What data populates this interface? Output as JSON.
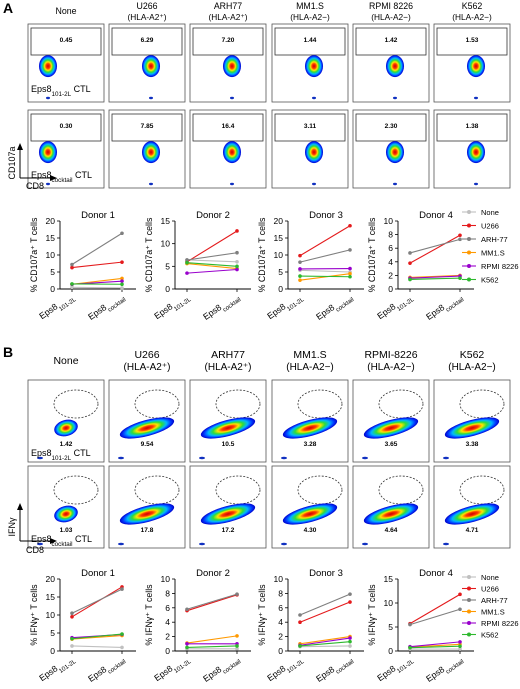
{
  "panelA": {
    "letter": "A",
    "columns": [
      {
        "title": "None",
        "sub": ""
      },
      {
        "title": "U266",
        "sub": "(HLA-A2⁺)"
      },
      {
        "title": "ARH77",
        "sub": "(HLA-A2⁺)"
      },
      {
        "title": "MM1.S",
        "sub": "(HLA-A2−)"
      },
      {
        "title": "RPMI 8226",
        "sub": "(HLA-A2−)"
      },
      {
        "title": "K562",
        "sub": "(HLA-A2−)"
      }
    ],
    "rows": [
      {
        "label_main": "Eps8",
        "label_sub": "101-2L",
        "label_tail": " CTL",
        "values": [
          "0.45",
          "6.29",
          "7.20",
          "1.44",
          "1.42",
          "1.53"
        ]
      },
      {
        "label_main": "Eps8",
        "label_sub": "cocktail",
        "label_tail": " CTL",
        "values": [
          "0.30",
          "7.85",
          "16.4",
          "3.11",
          "2.30",
          "1.38"
        ]
      }
    ],
    "yaxis": "CD107a",
    "xaxis": "CD8"
  },
  "panelB": {
    "letter": "B",
    "columns": [
      {
        "title": "None",
        "sub": ""
      },
      {
        "title": "U266",
        "sub": "(HLA-A2⁺)"
      },
      {
        "title": "ARH77",
        "sub": "(HLA-A2⁺)"
      },
      {
        "title": "MM1.S",
        "sub": "(HLA-A2−)"
      },
      {
        "title": "RPMI-8226",
        "sub": "(HLA-A2−)"
      },
      {
        "title": "K562",
        "sub": "(HLA-A2−)"
      }
    ],
    "rows": [
      {
        "label_main": "Eps8",
        "label_sub": "101-2L",
        "label_tail": " CTL",
        "values": [
          "1.42",
          "9.54",
          "10.5",
          "3.28",
          "3.65",
          "3.38"
        ]
      },
      {
        "label_main": "Eps8",
        "label_sub": "cocktail",
        "label_tail": " CTL",
        "values": [
          "1.03",
          "17.8",
          "17.2",
          "4.30",
          "4.64",
          "4.71"
        ]
      }
    ],
    "yaxis": "IFNγ",
    "xaxis": "CD8"
  },
  "legend": [
    {
      "name": "None",
      "color": "#c0c0c0"
    },
    {
      "name": "U266",
      "color": "#e41a1c"
    },
    {
      "name": "ARH-77",
      "color": "#7f7f7f"
    },
    {
      "name": "MM1.S",
      "color": "#ff9900"
    },
    {
      "name": "RPMI 8226",
      "color": "#9900cc"
    },
    {
      "name": "K562",
      "color": "#2eb82e"
    }
  ],
  "chart_data": [
    {
      "type": "line",
      "title": "Donor 1",
      "ylabel": "% CD107a⁺ T cells",
      "categories": [
        "Eps8 101-2L",
        "Eps8 cocktail"
      ],
      "ylim": [
        0,
        20
      ],
      "yticks": [
        0,
        5,
        10,
        15,
        20
      ],
      "series": [
        {
          "name": "None",
          "values": [
            0.5,
            0.3
          ]
        },
        {
          "name": "U266",
          "values": [
            6.3,
            7.9
          ]
        },
        {
          "name": "ARH-77",
          "values": [
            7.2,
            16.4
          ]
        },
        {
          "name": "MM1.S",
          "values": [
            1.4,
            3.1
          ]
        },
        {
          "name": "RPMI 8226",
          "values": [
            1.4,
            2.3
          ]
        },
        {
          "name": "K562",
          "values": [
            1.5,
            1.4
          ]
        }
      ]
    },
    {
      "type": "line",
      "title": "Donor 2",
      "ylabel": "% CD107a⁺ T cells",
      "categories": [
        "Eps8 101-2L",
        "Eps8 cocktail"
      ],
      "ylim": [
        0,
        15
      ],
      "yticks": [
        0,
        5,
        10,
        15
      ],
      "series": [
        {
          "name": "None",
          "values": [
            6.4,
            6.0
          ]
        },
        {
          "name": "U266",
          "values": [
            6.0,
            12.8
          ]
        },
        {
          "name": "ARH-77",
          "values": [
            6.4,
            8.0
          ]
        },
        {
          "name": "MM1.S",
          "values": [
            5.6,
            4.5
          ]
        },
        {
          "name": "RPMI 8226",
          "values": [
            3.5,
            4.3
          ]
        },
        {
          "name": "K562",
          "values": [
            5.8,
            5.0
          ]
        }
      ]
    },
    {
      "type": "line",
      "title": "Donor 3",
      "ylabel": "% CD107a⁺ T cells",
      "categories": [
        "Eps8 101-2L",
        "Eps8 cocktail"
      ],
      "ylim": [
        0,
        20
      ],
      "yticks": [
        0,
        5,
        10,
        15,
        20
      ],
      "series": [
        {
          "name": "None",
          "values": [
            5.5,
            5.0
          ]
        },
        {
          "name": "U266",
          "values": [
            9.8,
            18.6
          ]
        },
        {
          "name": "ARH-77",
          "values": [
            7.9,
            11.5
          ]
        },
        {
          "name": "MM1.S",
          "values": [
            2.6,
            4.5
          ]
        },
        {
          "name": "RPMI 8226",
          "values": [
            5.9,
            6.0
          ]
        },
        {
          "name": "K562",
          "values": [
            3.8,
            3.6
          ]
        }
      ]
    },
    {
      "type": "line",
      "title": "Donor 4",
      "ylabel": "% CD107a⁺ T cells",
      "categories": [
        "Eps8 101-2L",
        "Eps8 cocktail"
      ],
      "ylim": [
        0,
        10
      ],
      "yticks": [
        0,
        2,
        4,
        6,
        8,
        10
      ],
      "series": [
        {
          "name": "None",
          "values": [
            1.5,
            1.6
          ]
        },
        {
          "name": "U266",
          "values": [
            3.8,
            7.9
          ]
        },
        {
          "name": "ARH-77",
          "values": [
            5.3,
            7.3
          ]
        },
        {
          "name": "MM1.S",
          "values": [
            1.7,
            2.0
          ]
        },
        {
          "name": "RPMI 8226",
          "values": [
            1.6,
            1.9
          ]
        },
        {
          "name": "K562",
          "values": [
            1.4,
            1.6
          ]
        }
      ]
    },
    {
      "type": "line",
      "title": "Donor 1",
      "ylabel": "% IFNγ⁺ T cells",
      "categories": [
        "Eps8 101-2L",
        "Eps8 cocktail"
      ],
      "ylim": [
        0,
        20
      ],
      "yticks": [
        0,
        5,
        10,
        15,
        20
      ],
      "series": [
        {
          "name": "None",
          "values": [
            1.4,
            1.0
          ]
        },
        {
          "name": "U266",
          "values": [
            9.5,
            17.8
          ]
        },
        {
          "name": "ARH-77",
          "values": [
            10.5,
            17.2
          ]
        },
        {
          "name": "MM1.S",
          "values": [
            3.3,
            4.3
          ]
        },
        {
          "name": "RPMI 8226",
          "values": [
            3.7,
            4.6
          ]
        },
        {
          "name": "K562",
          "values": [
            3.4,
            4.7
          ]
        }
      ]
    },
    {
      "type": "line",
      "title": "Donor 2",
      "ylabel": "% IFNγ⁺ T cells",
      "categories": [
        "Eps8 101-2L",
        "Eps8 cocktail"
      ],
      "ylim": [
        0,
        10
      ],
      "yticks": [
        0,
        2,
        4,
        6,
        8,
        10
      ],
      "series": [
        {
          "name": "None",
          "values": [
            0.3,
            0.3
          ]
        },
        {
          "name": "U266",
          "values": [
            5.6,
            7.8
          ]
        },
        {
          "name": "ARH-77",
          "values": [
            5.8,
            7.9
          ]
        },
        {
          "name": "MM1.S",
          "values": [
            1.1,
            2.1
          ]
        },
        {
          "name": "RPMI 8226",
          "values": [
            1.0,
            1.0
          ]
        },
        {
          "name": "K562",
          "values": [
            0.5,
            0.7
          ]
        }
      ]
    },
    {
      "type": "line",
      "title": "Donor 3",
      "ylabel": "% IFNγ⁺ T cells",
      "categories": [
        "Eps8 101-2L",
        "Eps8 cocktail"
      ],
      "ylim": [
        0,
        10
      ],
      "yticks": [
        0,
        2,
        4,
        6,
        8,
        10
      ],
      "series": [
        {
          "name": "None",
          "values": [
            0.6,
            0.7
          ]
        },
        {
          "name": "U266",
          "values": [
            4.0,
            6.8
          ]
        },
        {
          "name": "ARH-77",
          "values": [
            5.0,
            7.9
          ]
        },
        {
          "name": "MM1.S",
          "values": [
            1.0,
            2.0
          ]
        },
        {
          "name": "RPMI 8226",
          "values": [
            0.8,
            1.8
          ]
        },
        {
          "name": "K562",
          "values": [
            0.7,
            1.3
          ]
        }
      ]
    },
    {
      "type": "line",
      "title": "Donor 4",
      "ylabel": "% IFNγ⁺ T cells",
      "categories": [
        "Eps8 101-2L",
        "Eps8 cocktail"
      ],
      "ylim": [
        0,
        15
      ],
      "yticks": [
        0,
        5,
        10,
        15
      ],
      "series": [
        {
          "name": "None",
          "values": [
            0.4,
            0.4
          ]
        },
        {
          "name": "U266",
          "values": [
            5.7,
            11.8
          ]
        },
        {
          "name": "ARH-77",
          "values": [
            5.5,
            8.7
          ]
        },
        {
          "name": "MM1.S",
          "values": [
            0.8,
            1.4
          ]
        },
        {
          "name": "RPMI 8226",
          "values": [
            0.9,
            1.9
          ]
        },
        {
          "name": "K562",
          "values": [
            0.7,
            1.0
          ]
        }
      ]
    }
  ]
}
